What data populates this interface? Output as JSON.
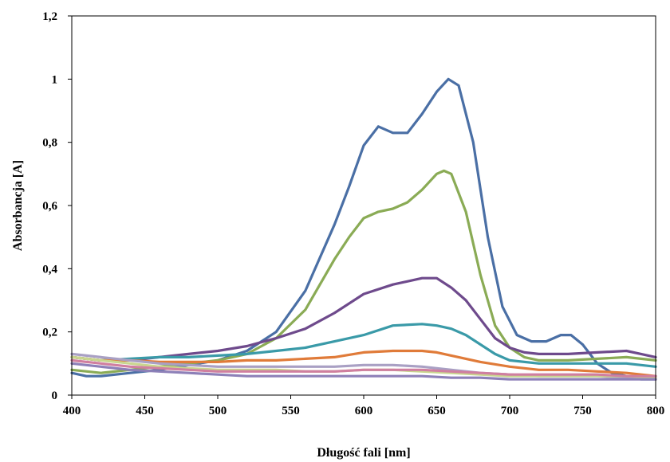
{
  "chart_data": {
    "type": "line",
    "title": "",
    "xlabel": "Długość fali [nm]",
    "ylabel": "Absorbancja [A]",
    "xlim": [
      400,
      800
    ],
    "ylim": [
      0,
      1.2
    ],
    "x_ticks": [
      400,
      450,
      500,
      550,
      600,
      650,
      700,
      750,
      800
    ],
    "y_ticks": [
      0,
      0.2,
      0.4,
      0.6,
      0.8,
      1,
      1.2
    ],
    "x_tick_labels": [
      "400",
      "450",
      "500",
      "550",
      "600",
      "650",
      "700",
      "750",
      "800"
    ],
    "y_tick_labels": [
      "0",
      "0,2",
      "0,4",
      "0,6",
      "0,8",
      "1",
      "1,2"
    ],
    "grid": false,
    "legend": "none",
    "series": [
      {
        "color": "#4a6fa5",
        "points": [
          [
            400,
            0.07
          ],
          [
            410,
            0.06
          ],
          [
            420,
            0.06
          ],
          [
            440,
            0.07
          ],
          [
            460,
            0.08
          ],
          [
            480,
            0.095
          ],
          [
            500,
            0.11
          ],
          [
            520,
            0.14
          ],
          [
            540,
            0.2
          ],
          [
            560,
            0.33
          ],
          [
            580,
            0.54
          ],
          [
            590,
            0.66
          ],
          [
            600,
            0.79
          ],
          [
            610,
            0.85
          ],
          [
            620,
            0.83
          ],
          [
            630,
            0.83
          ],
          [
            640,
            0.89
          ],
          [
            650,
            0.96
          ],
          [
            658,
            1.0
          ],
          [
            665,
            0.98
          ],
          [
            675,
            0.8
          ],
          [
            685,
            0.5
          ],
          [
            695,
            0.28
          ],
          [
            705,
            0.19
          ],
          [
            715,
            0.17
          ],
          [
            725,
            0.17
          ],
          [
            735,
            0.19
          ],
          [
            742,
            0.19
          ],
          [
            750,
            0.16
          ],
          [
            760,
            0.1
          ],
          [
            770,
            0.07
          ],
          [
            780,
            0.06
          ],
          [
            790,
            0.05
          ],
          [
            800,
            0.05
          ]
        ]
      },
      {
        "color": "#8aab55",
        "points": [
          [
            400,
            0.08
          ],
          [
            420,
            0.07
          ],
          [
            440,
            0.08
          ],
          [
            460,
            0.09
          ],
          [
            480,
            0.1
          ],
          [
            500,
            0.11
          ],
          [
            520,
            0.13
          ],
          [
            540,
            0.18
          ],
          [
            560,
            0.27
          ],
          [
            580,
            0.43
          ],
          [
            590,
            0.5
          ],
          [
            600,
            0.56
          ],
          [
            610,
            0.58
          ],
          [
            620,
            0.59
          ],
          [
            630,
            0.61
          ],
          [
            640,
            0.65
          ],
          [
            650,
            0.7
          ],
          [
            655,
            0.71
          ],
          [
            660,
            0.7
          ],
          [
            670,
            0.58
          ],
          [
            680,
            0.38
          ],
          [
            690,
            0.22
          ],
          [
            700,
            0.15
          ],
          [
            710,
            0.12
          ],
          [
            720,
            0.11
          ],
          [
            740,
            0.11
          ],
          [
            760,
            0.115
          ],
          [
            780,
            0.12
          ],
          [
            800,
            0.11
          ]
        ]
      },
      {
        "color": "#6e4a8c",
        "points": [
          [
            400,
            0.12
          ],
          [
            420,
            0.11
          ],
          [
            440,
            0.11
          ],
          [
            460,
            0.12
          ],
          [
            480,
            0.13
          ],
          [
            500,
            0.14
          ],
          [
            520,
            0.155
          ],
          [
            540,
            0.18
          ],
          [
            560,
            0.21
          ],
          [
            580,
            0.26
          ],
          [
            600,
            0.32
          ],
          [
            620,
            0.35
          ],
          [
            640,
            0.37
          ],
          [
            650,
            0.37
          ],
          [
            660,
            0.34
          ],
          [
            670,
            0.3
          ],
          [
            680,
            0.24
          ],
          [
            690,
            0.18
          ],
          [
            700,
            0.15
          ],
          [
            710,
            0.135
          ],
          [
            720,
            0.13
          ],
          [
            740,
            0.13
          ],
          [
            760,
            0.135
          ],
          [
            780,
            0.14
          ],
          [
            790,
            0.13
          ],
          [
            800,
            0.12
          ]
        ]
      },
      {
        "color": "#3a9aa8",
        "points": [
          [
            400,
            0.12
          ],
          [
            420,
            0.11
          ],
          [
            440,
            0.115
          ],
          [
            460,
            0.12
          ],
          [
            480,
            0.12
          ],
          [
            500,
            0.125
          ],
          [
            520,
            0.13
          ],
          [
            540,
            0.14
          ],
          [
            560,
            0.15
          ],
          [
            580,
            0.17
          ],
          [
            600,
            0.19
          ],
          [
            620,
            0.22
          ],
          [
            640,
            0.225
          ],
          [
            650,
            0.22
          ],
          [
            660,
            0.21
          ],
          [
            670,
            0.19
          ],
          [
            680,
            0.16
          ],
          [
            690,
            0.13
          ],
          [
            700,
            0.11
          ],
          [
            720,
            0.1
          ],
          [
            740,
            0.1
          ],
          [
            760,
            0.1
          ],
          [
            780,
            0.1
          ],
          [
            800,
            0.09
          ]
        ]
      },
      {
        "color": "#e07b39",
        "points": [
          [
            400,
            0.12
          ],
          [
            420,
            0.11
          ],
          [
            440,
            0.11
          ],
          [
            460,
            0.105
          ],
          [
            480,
            0.105
          ],
          [
            500,
            0.105
          ],
          [
            520,
            0.11
          ],
          [
            540,
            0.11
          ],
          [
            560,
            0.115
          ],
          [
            580,
            0.12
          ],
          [
            600,
            0.135
          ],
          [
            620,
            0.14
          ],
          [
            640,
            0.14
          ],
          [
            650,
            0.135
          ],
          [
            660,
            0.125
          ],
          [
            680,
            0.105
          ],
          [
            700,
            0.09
          ],
          [
            720,
            0.08
          ],
          [
            740,
            0.08
          ],
          [
            760,
            0.075
          ],
          [
            780,
            0.07
          ],
          [
            800,
            0.06
          ]
        ]
      },
      {
        "color": "#a9a0c4",
        "points": [
          [
            400,
            0.13
          ],
          [
            420,
            0.12
          ],
          [
            440,
            0.11
          ],
          [
            460,
            0.1
          ],
          [
            480,
            0.095
          ],
          [
            500,
            0.09
          ],
          [
            520,
            0.09
          ],
          [
            540,
            0.09
          ],
          [
            560,
            0.09
          ],
          [
            580,
            0.09
          ],
          [
            600,
            0.095
          ],
          [
            620,
            0.095
          ],
          [
            640,
            0.09
          ],
          [
            660,
            0.08
          ],
          [
            680,
            0.07
          ],
          [
            700,
            0.065
          ],
          [
            720,
            0.06
          ],
          [
            740,
            0.06
          ],
          [
            760,
            0.06
          ],
          [
            780,
            0.055
          ],
          [
            800,
            0.05
          ]
        ]
      },
      {
        "color": "#c9d68f",
        "points": [
          [
            400,
            0.12
          ],
          [
            420,
            0.11
          ],
          [
            440,
            0.1
          ],
          [
            460,
            0.09
          ],
          [
            480,
            0.085
          ],
          [
            500,
            0.08
          ],
          [
            520,
            0.08
          ],
          [
            540,
            0.08
          ],
          [
            560,
            0.075
          ],
          [
            580,
            0.075
          ],
          [
            600,
            0.08
          ],
          [
            620,
            0.08
          ],
          [
            640,
            0.075
          ],
          [
            660,
            0.07
          ],
          [
            680,
            0.065
          ],
          [
            700,
            0.06
          ],
          [
            720,
            0.06
          ],
          [
            740,
            0.06
          ],
          [
            760,
            0.06
          ],
          [
            780,
            0.06
          ],
          [
            800,
            0.055
          ]
        ]
      },
      {
        "color": "#d07fa0",
        "points": [
          [
            400,
            0.11
          ],
          [
            420,
            0.1
          ],
          [
            440,
            0.09
          ],
          [
            460,
            0.085
          ],
          [
            480,
            0.08
          ],
          [
            500,
            0.075
          ],
          [
            520,
            0.075
          ],
          [
            540,
            0.075
          ],
          [
            560,
            0.075
          ],
          [
            580,
            0.075
          ],
          [
            600,
            0.08
          ],
          [
            620,
            0.08
          ],
          [
            640,
            0.08
          ],
          [
            660,
            0.075
          ],
          [
            680,
            0.07
          ],
          [
            700,
            0.065
          ],
          [
            720,
            0.065
          ],
          [
            740,
            0.065
          ],
          [
            760,
            0.065
          ],
          [
            780,
            0.06
          ],
          [
            800,
            0.06
          ]
        ]
      },
      {
        "color": "#8d80b8",
        "points": [
          [
            400,
            0.1
          ],
          [
            420,
            0.09
          ],
          [
            440,
            0.08
          ],
          [
            460,
            0.075
          ],
          [
            480,
            0.07
          ],
          [
            500,
            0.065
          ],
          [
            520,
            0.06
          ],
          [
            540,
            0.06
          ],
          [
            560,
            0.06
          ],
          [
            580,
            0.06
          ],
          [
            600,
            0.06
          ],
          [
            620,
            0.06
          ],
          [
            640,
            0.06
          ],
          [
            660,
            0.055
          ],
          [
            680,
            0.055
          ],
          [
            700,
            0.05
          ],
          [
            720,
            0.05
          ],
          [
            740,
            0.05
          ],
          [
            760,
            0.05
          ],
          [
            780,
            0.05
          ],
          [
            800,
            0.05
          ]
        ]
      }
    ]
  }
}
